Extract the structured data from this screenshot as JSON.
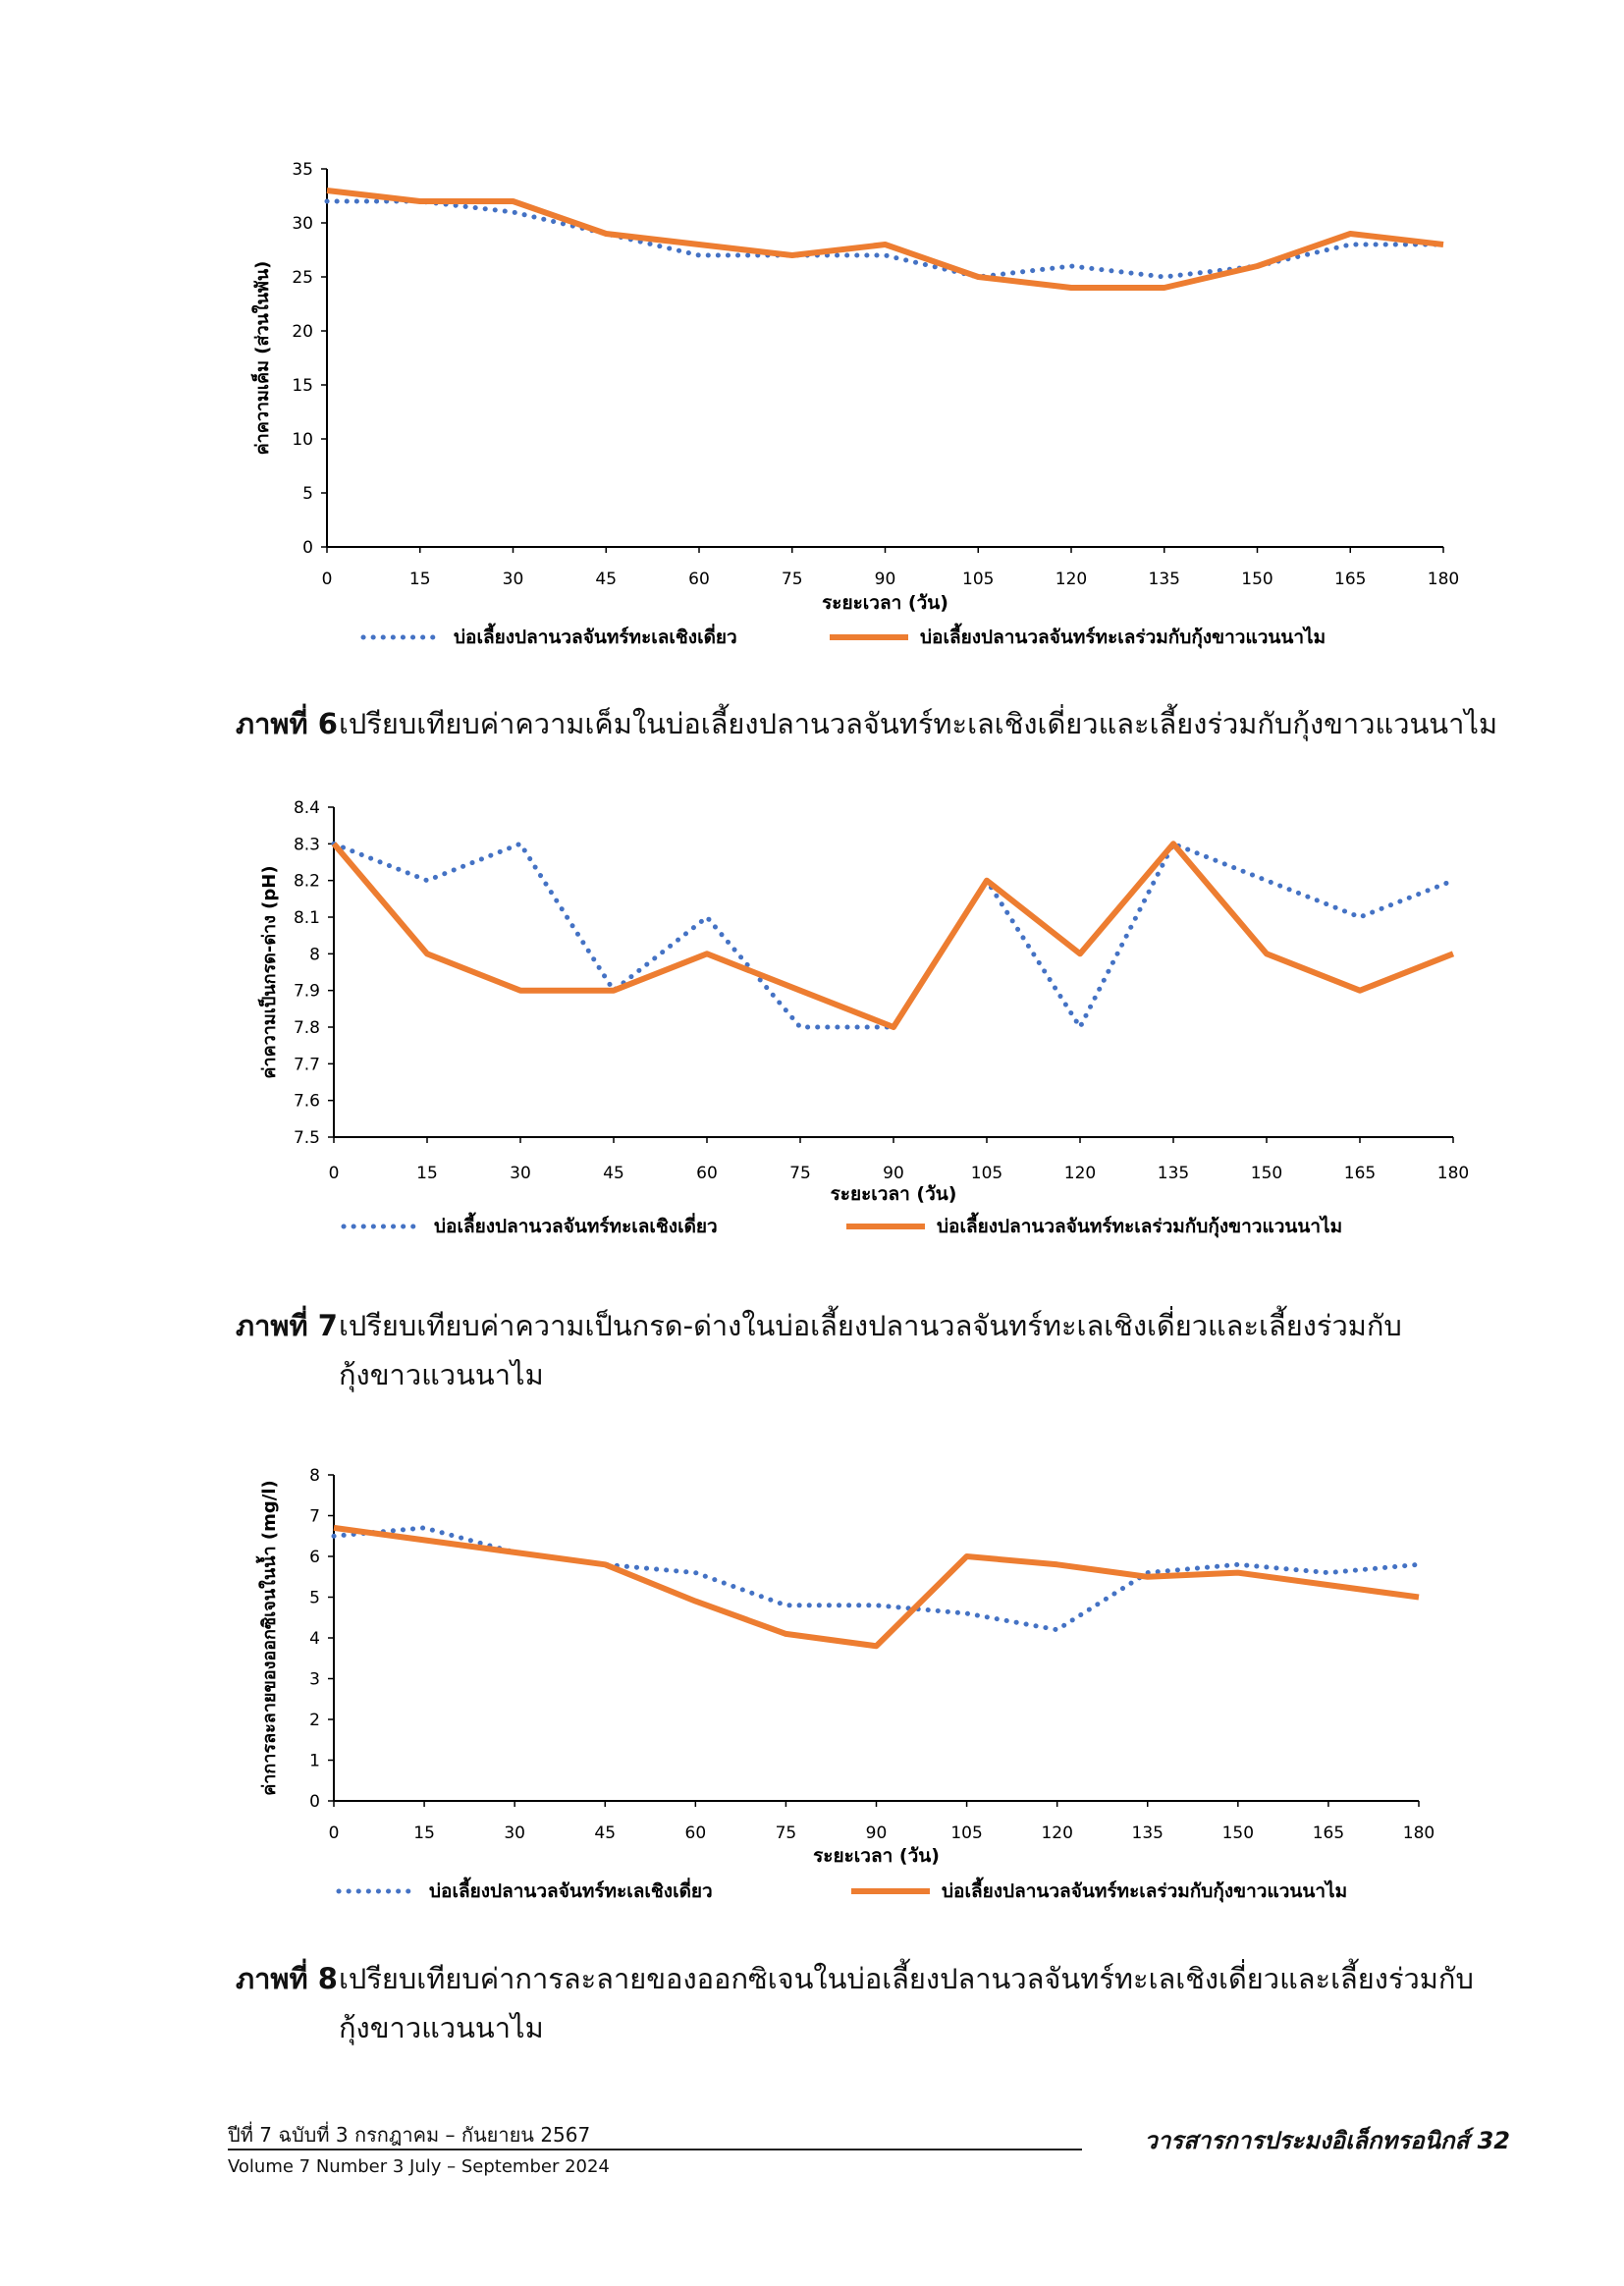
{
  "chart_data": [
    {
      "type": "line",
      "title": "",
      "xlabel": "ระยะเวลา (วัน)",
      "ylabel": "ค่าความเค็ม (ส่วนในพัน)",
      "categories": [
        "0",
        "15",
        "30",
        "45",
        "60",
        "75",
        "90",
        "105",
        "120",
        "135",
        "150",
        "165",
        "180"
      ],
      "ylim": [
        0,
        35
      ],
      "yticks": [
        "0",
        "5",
        "10",
        "15",
        "20",
        "25",
        "30",
        "35"
      ],
      "grid": false,
      "legend": "bottom",
      "series": [
        {
          "name": "บ่อเลี้ยงปลานวลจันทร์ทะเลเชิงเดี่ยว",
          "style": "dotted",
          "color": "#4472C4",
          "values": [
            32,
            32,
            31,
            29,
            27,
            27,
            27,
            25,
            26,
            25,
            26,
            28,
            28
          ]
        },
        {
          "name": "บ่อเลี้ยงปลานวลจันทร์ทะเลร่วมกับกุ้งขาวแวนนาไม",
          "style": "solid",
          "color": "#ED7D31",
          "values": [
            33,
            32,
            32,
            29,
            28,
            27,
            28,
            25,
            24,
            24,
            26,
            29,
            28
          ]
        }
      ]
    },
    {
      "type": "line",
      "title": "",
      "xlabel": "ระยะเวลา (วัน)",
      "ylabel": "ค่าความเป็นกรด-ด่าง (pH)",
      "categories": [
        "0",
        "15",
        "30",
        "45",
        "60",
        "75",
        "90",
        "105",
        "120",
        "135",
        "150",
        "165",
        "180"
      ],
      "ylim": [
        7.5,
        8.4
      ],
      "yticks": [
        "7.5",
        "7.6",
        "7.7",
        "7.8",
        "7.9",
        "8",
        "8.1",
        "8.2",
        "8.3",
        "8.4"
      ],
      "grid": false,
      "legend": "bottom",
      "series": [
        {
          "name": "บ่อเลี้ยงปลานวลจันทร์ทะเลเชิงเดี่ยว",
          "style": "dotted",
          "color": "#4472C4",
          "values": [
            8.3,
            8.2,
            8.3,
            7.9,
            8.1,
            7.8,
            7.8,
            8.2,
            7.8,
            8.3,
            8.2,
            8.1,
            8.2
          ]
        },
        {
          "name": "บ่อเลี้ยงปลานวลจันทร์ทะเลร่วมกับกุ้งขาวแวนนาไม",
          "style": "solid",
          "color": "#ED7D31",
          "values": [
            8.3,
            8.0,
            7.9,
            7.9,
            8.0,
            7.9,
            7.8,
            8.2,
            8.0,
            8.3,
            8.0,
            7.9,
            8.0
          ]
        }
      ]
    },
    {
      "type": "line",
      "title": "",
      "xlabel": "ระยะเวลา (วัน)",
      "ylabel": "ค่าการละลายของออกซิเจนในน้ำ (mg/l)",
      "categories": [
        "0",
        "15",
        "30",
        "45",
        "60",
        "75",
        "90",
        "105",
        "120",
        "135",
        "150",
        "165",
        "180"
      ],
      "ylim": [
        0,
        8
      ],
      "yticks": [
        "0",
        "1",
        "2",
        "3",
        "4",
        "5",
        "6",
        "7",
        "8"
      ],
      "grid": false,
      "legend": "bottom",
      "series": [
        {
          "name": "บ่อเลี้ยงปลานวลจันทร์ทะเลเชิงเดี่ยว",
          "style": "dotted",
          "color": "#4472C4",
          "values": [
            6.5,
            6.7,
            6.1,
            5.8,
            5.6,
            4.8,
            4.8,
            4.6,
            4.2,
            5.6,
            5.8,
            5.6,
            5.8
          ]
        },
        {
          "name": "บ่อเลี้ยงปลานวลจันทร์ทะเลร่วมกับกุ้งขาวแวนนาไม",
          "style": "solid",
          "color": "#ED7D31",
          "values": [
            6.7,
            6.4,
            6.1,
            5.8,
            4.9,
            4.1,
            3.8,
            6.0,
            5.8,
            5.5,
            5.6,
            5.3,
            5.0
          ]
        }
      ]
    }
  ],
  "captions": [
    {
      "label": "ภาพที่ 6",
      "text": "เปรียบเทียบค่าความเค็มในบ่อเลี้ยงปลานวลจันทร์ทะเลเชิงเดี่ยวและเลี้ยงร่วมกับกุ้งขาวแวนนาไม",
      "cont": ""
    },
    {
      "label": "ภาพที่ 7",
      "text": "เปรียบเทียบค่าความเป็นกรด-ด่างในบ่อเลี้ยงปลานวลจันทร์ทะเลเชิงเดี่ยวและเลี้ยงร่วมกับ",
      "cont": "กุ้งขาวแวนนาไม"
    },
    {
      "label": "ภาพที่ 8",
      "text": "เปรียบเทียบค่าการละลายของออกซิเจนในบ่อเลี้ยงปลานวลจันทร์ทะเลเชิงเดี่ยวและเลี้ยงร่วมกับ",
      "cont": "กุ้งขาวแวนนาไม"
    }
  ],
  "footer": {
    "issue_th": "ปีที่ 7 ฉบับที่ 3 กรกฎาคม – กันยายน 2567",
    "issue_en": "Volume 7 Number 3 July – September 2024",
    "journal": "วารสารการประมงอิเล็กทรอนิกส์",
    "page": "32"
  }
}
